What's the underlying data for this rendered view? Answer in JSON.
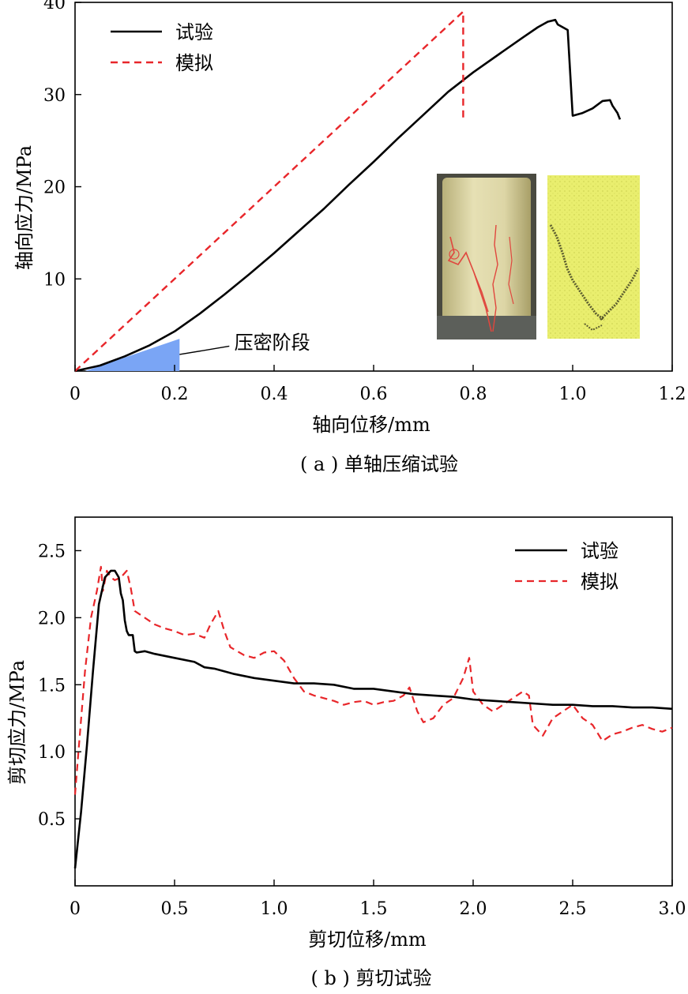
{
  "chart_data": [
    {
      "type": "line",
      "caption": "( a ) 单轴压缩试验",
      "xlabel": "轴向位移/mm",
      "ylabel": "轴向应力/MPa",
      "xlim": [
        0,
        1.2
      ],
      "ylim": [
        0,
        40
      ],
      "xticks": [
        "0",
        "0.2",
        "0.4",
        "0.6",
        "0.8",
        "1.0",
        "1.2"
      ],
      "yticks": [
        "10",
        "20",
        "30",
        "40"
      ],
      "grid": false,
      "legend_position": "top-left",
      "annotation": "压密阶段",
      "compaction_region": {
        "x": [
          0.02,
          0.21
        ],
        "y_top": [
          0,
          3.5
        ],
        "color": "#7aa5f5"
      },
      "colors": {
        "test": "#000000",
        "sim": "#e8262a"
      },
      "inset_images": [
        "specimen-photo",
        "simulation-crack-map"
      ],
      "series": [
        {
          "name": "试验",
          "style": "solid",
          "x": [
            0.0,
            0.05,
            0.1,
            0.15,
            0.2,
            0.25,
            0.3,
            0.35,
            0.4,
            0.45,
            0.5,
            0.55,
            0.6,
            0.65,
            0.7,
            0.75,
            0.8,
            0.85,
            0.9,
            0.93,
            0.95,
            0.965,
            0.97,
            0.98,
            0.99,
            1.0,
            1.02,
            1.04,
            1.06,
            1.075,
            1.08,
            1.09,
            1.095
          ],
          "y": [
            0.0,
            0.6,
            1.6,
            2.8,
            4.3,
            6.2,
            8.3,
            10.5,
            12.8,
            15.2,
            17.6,
            20.2,
            22.7,
            25.3,
            27.8,
            30.3,
            32.4,
            34.3,
            36.2,
            37.3,
            37.9,
            38.1,
            37.6,
            37.3,
            37.0,
            27.7,
            28.0,
            28.5,
            29.3,
            29.4,
            28.8,
            28.0,
            27.3
          ]
        },
        {
          "name": "模拟",
          "style": "dashed",
          "x": [
            0.0,
            0.78,
            0.78
          ],
          "y": [
            0.0,
            39.0,
            27.4
          ]
        }
      ]
    },
    {
      "type": "line",
      "caption": "( b ) 剪切试验",
      "xlabel": "剪切位移/mm",
      "ylabel": "剪切应力/MPa",
      "xlim": [
        0,
        3.0
      ],
      "ylim": [
        0,
        2.75
      ],
      "xticks": [
        "0",
        "0.5",
        "1.0",
        "1.5",
        "2.0",
        "2.5",
        "3.0"
      ],
      "yticks": [
        "0.5",
        "1.0",
        "1.5",
        "2.0",
        "2.5"
      ],
      "grid": false,
      "legend_position": "top-right",
      "colors": {
        "test": "#000000",
        "sim": "#e8262a"
      },
      "series": [
        {
          "name": "试验",
          "style": "solid",
          "x": [
            0.0,
            0.03,
            0.06,
            0.09,
            0.12,
            0.15,
            0.18,
            0.2,
            0.22,
            0.23,
            0.24,
            0.25,
            0.26,
            0.27,
            0.29,
            0.3,
            0.31,
            0.35,
            0.4,
            0.5,
            0.6,
            0.65,
            0.7,
            0.8,
            0.9,
            1.0,
            1.1,
            1.2,
            1.3,
            1.4,
            1.5,
            1.6,
            1.7,
            1.8,
            1.9,
            2.0,
            2.1,
            2.2,
            2.3,
            2.4,
            2.5,
            2.6,
            2.7,
            2.8,
            2.9,
            3.0
          ],
          "y": [
            0.13,
            0.55,
            1.05,
            1.6,
            2.1,
            2.3,
            2.35,
            2.35,
            2.3,
            2.18,
            2.13,
            1.98,
            1.9,
            1.87,
            1.87,
            1.75,
            1.74,
            1.75,
            1.73,
            1.7,
            1.67,
            1.63,
            1.62,
            1.58,
            1.55,
            1.53,
            1.51,
            1.51,
            1.5,
            1.47,
            1.47,
            1.45,
            1.43,
            1.42,
            1.41,
            1.39,
            1.38,
            1.37,
            1.36,
            1.35,
            1.35,
            1.34,
            1.34,
            1.33,
            1.33,
            1.32
          ]
        },
        {
          "name": "模拟",
          "style": "dashed",
          "x": [
            0.0,
            0.02,
            0.05,
            0.08,
            0.11,
            0.13,
            0.14,
            0.16,
            0.18,
            0.2,
            0.23,
            0.26,
            0.28,
            0.3,
            0.35,
            0.4,
            0.45,
            0.5,
            0.55,
            0.6,
            0.65,
            0.68,
            0.72,
            0.75,
            0.78,
            0.85,
            0.9,
            0.95,
            1.0,
            1.05,
            1.1,
            1.15,
            1.2,
            1.25,
            1.3,
            1.35,
            1.4,
            1.45,
            1.5,
            1.55,
            1.6,
            1.65,
            1.68,
            1.72,
            1.75,
            1.8,
            1.85,
            1.9,
            1.95,
            1.98,
            2.0,
            2.05,
            2.1,
            2.15,
            2.2,
            2.25,
            2.28,
            2.3,
            2.35,
            2.4,
            2.45,
            2.5,
            2.55,
            2.6,
            2.65,
            2.7,
            2.75,
            2.8,
            2.85,
            2.9,
            2.95,
            3.0
          ],
          "y": [
            0.68,
            1.05,
            1.6,
            2.0,
            2.2,
            2.38,
            2.2,
            2.35,
            2.3,
            2.28,
            2.3,
            2.35,
            2.22,
            2.05,
            2.0,
            1.95,
            1.92,
            1.9,
            1.87,
            1.88,
            1.85,
            1.95,
            2.05,
            1.9,
            1.78,
            1.72,
            1.7,
            1.74,
            1.75,
            1.68,
            1.55,
            1.45,
            1.42,
            1.4,
            1.38,
            1.35,
            1.37,
            1.38,
            1.35,
            1.37,
            1.38,
            1.42,
            1.48,
            1.3,
            1.22,
            1.25,
            1.35,
            1.4,
            1.55,
            1.7,
            1.45,
            1.35,
            1.3,
            1.35,
            1.4,
            1.45,
            1.42,
            1.2,
            1.12,
            1.25,
            1.3,
            1.35,
            1.25,
            1.2,
            1.08,
            1.13,
            1.15,
            1.18,
            1.2,
            1.17,
            1.15,
            1.18
          ]
        }
      ]
    }
  ]
}
